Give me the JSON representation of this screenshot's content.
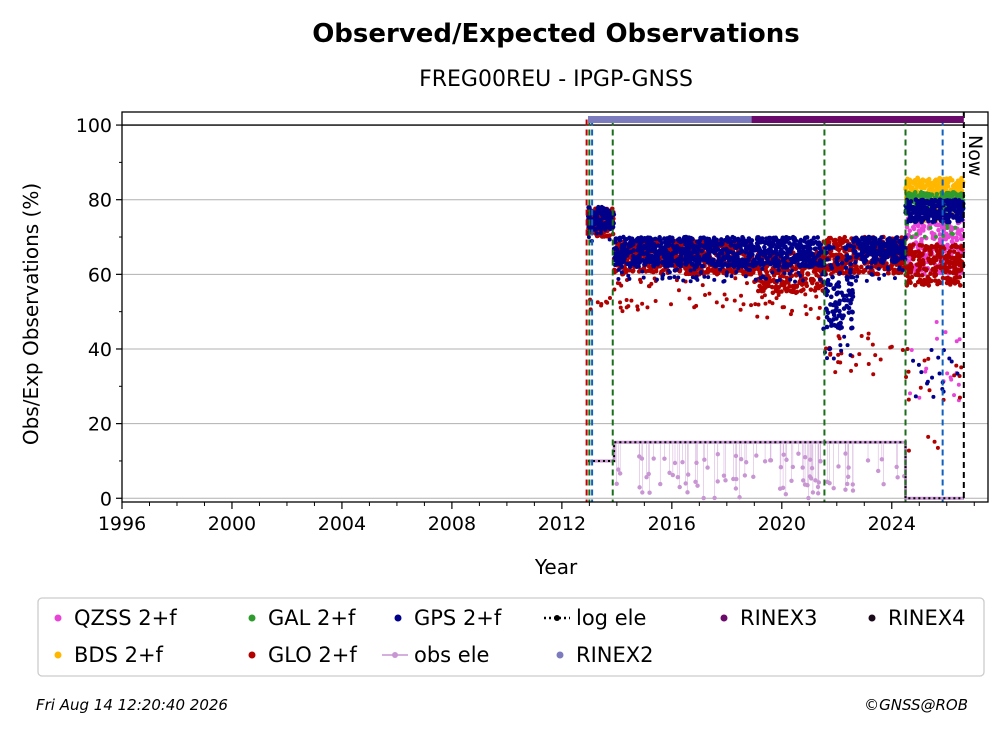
{
  "chart_data": {
    "type": "scatter",
    "title": "Observed/Expected Observations",
    "subtitle": "FREG00REU - IPGP-GNSS",
    "xlabel": "Year",
    "ylabel": "Obs/Exp Observations (%)",
    "xlim": [
      1996,
      2027.5
    ],
    "ylim": [
      -1,
      103.5
    ],
    "xticks": [
      1996,
      2000,
      2004,
      2008,
      2012,
      2016,
      2020,
      2024
    ],
    "yticks": [
      0,
      20,
      40,
      60,
      80,
      100
    ],
    "grid": "horizontal",
    "now_label": "Now",
    "now_x": 2026.62,
    "legend_position": "bottom",
    "series": [
      {
        "name": "QZSS 2+f",
        "color": "#e845d8",
        "marker": "dot",
        "segments": [
          {
            "x": [
              2024.5,
              2026.6
            ],
            "y": [
              60,
              75
            ],
            "scatter": [
              25,
              48
            ]
          }
        ]
      },
      {
        "name": "BDS 2+f",
        "color": "#ffb700",
        "marker": "dot",
        "segments": [
          {
            "x": [
              2024.5,
              2026.6
            ],
            "y": [
              80,
              86
            ],
            "scatter": [
              74,
              80
            ]
          }
        ]
      },
      {
        "name": "GAL 2+f",
        "color": "#2e9b2e",
        "marker": "dot",
        "segments": [
          {
            "x": [
              2024.5,
              2026.6
            ],
            "y": [
              77,
              82
            ],
            "scatter": [
              70,
              77
            ]
          }
        ]
      },
      {
        "name": "GLO 2+f",
        "color": "#b00000",
        "marker": "dot",
        "segments": [
          {
            "x": [
              2012.95,
              2013.9
            ],
            "y": [
              70,
              78
            ],
            "scatter": [
              50,
              55
            ]
          },
          {
            "x": [
              2013.9,
              2019.0
            ],
            "y": [
              60,
              69
            ],
            "scatter": [
              50,
              59
            ]
          },
          {
            "x": [
              2019.0,
              2021.5
            ],
            "y": [
              55,
              66
            ],
            "scatter": [
              48,
              55
            ]
          },
          {
            "x": [
              2021.5,
              2024.5
            ],
            "y": [
              60,
              70
            ],
            "scatter": [
              33,
              45
            ]
          },
          {
            "x": [
              2024.5,
              2026.6
            ],
            "y": [
              57,
              68
            ],
            "scatter": [
              12,
              40
            ]
          }
        ]
      },
      {
        "name": "GPS 2+f",
        "color": "#00008b",
        "marker": "dot",
        "segments": [
          {
            "x": [
              2012.95,
              2013.9
            ],
            "y": [
              72,
              78
            ],
            "scatter": [
              68,
              72
            ]
          },
          {
            "x": [
              2013.9,
              2021.5
            ],
            "y": [
              62,
              70
            ],
            "scatter": [
              58,
              62
            ]
          },
          {
            "x": [
              2021.5,
              2022.6
            ],
            "y": [
              45,
              68
            ],
            "scatter": [
              37,
              44
            ]
          },
          {
            "x": [
              2022.6,
              2024.5
            ],
            "y": [
              63,
              70
            ],
            "scatter": [
              58,
              62
            ]
          },
          {
            "x": [
              2024.5,
              2026.6
            ],
            "y": [
              74,
              80
            ],
            "scatter": [
              26,
              40
            ]
          }
        ]
      },
      {
        "name": "obs ele",
        "color": "#c896d2",
        "marker": "line",
        "steps": [
          [
            2012.95,
            10
          ],
          [
            2013.9,
            15
          ],
          [
            2024.5,
            0
          ],
          [
            2026.62,
            0
          ]
        ]
      },
      {
        "name": "log ele",
        "color": "#000000",
        "marker": "dotted-line",
        "steps": [
          [
            2012.95,
            10
          ],
          [
            2013.9,
            15
          ],
          [
            2024.5,
            0
          ],
          [
            2026.62,
            0
          ]
        ]
      },
      {
        "name": "RINEX2",
        "color": "#7b7bbd",
        "marker": "bar",
        "range": [
          2012.95,
          2018.9
        ],
        "y": 101.5
      },
      {
        "name": "RINEX3",
        "color": "#6a0a6a",
        "marker": "bar",
        "range": [
          2018.9,
          2026.62
        ],
        "y": 101.5
      },
      {
        "name": "RINEX4",
        "color": "#1a0a1a",
        "marker": "bar",
        "range": [],
        "y": 101.5
      }
    ],
    "event_lines": [
      {
        "x": 2012.9,
        "color": "#c00000"
      },
      {
        "x": 2013.0,
        "color": "#1a6e1a"
      },
      {
        "x": 2013.1,
        "color": "#1060c0"
      },
      {
        "x": 2013.85,
        "color": "#1a6e1a"
      },
      {
        "x": 2021.55,
        "color": "#1a6e1a"
      },
      {
        "x": 2024.5,
        "color": "#1a6e1a"
      },
      {
        "x": 2025.85,
        "color": "#1060c0"
      }
    ]
  },
  "footer": {
    "timestamp": "Fri Aug 14 12:20:40 2026",
    "credit": "©GNSS@ROB"
  }
}
